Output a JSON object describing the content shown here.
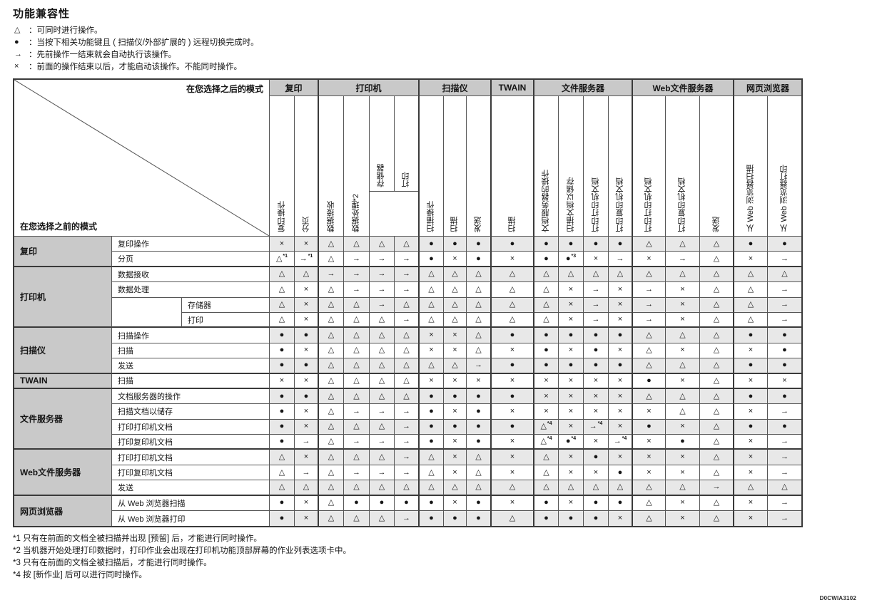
{
  "title": "功能兼容性",
  "legend": [
    {
      "symbol": "△",
      "text": "：可同时进行操作。"
    },
    {
      "symbol": "●",
      "text": "：当按下相关功能键且 ( 扫描仪/外部扩展的 ) 远程切换完成时。"
    },
    {
      "symbol": "→",
      "text": "：先前操作一结束就会自动执行该操作。"
    },
    {
      "symbol": "×",
      "text": "：前面的操作结束以后，才能启动该操作。不能同时操作。"
    }
  ],
  "table": {
    "corner_top_right": "在您选择之后的模式",
    "corner_bottom_left": "在您选择之前的模式",
    "column_groups": [
      {
        "label": "复印",
        "span": 2
      },
      {
        "label": "打印机",
        "span": 4
      },
      {
        "label": "扫描仪",
        "span": 3
      },
      {
        "label": "TWAIN",
        "span": 1
      },
      {
        "label": "文件服务器",
        "span": 4
      },
      {
        "label": "Web文件服务器",
        "span": 3
      },
      {
        "label": "网页浏览器",
        "span": 2
      }
    ],
    "column_labels": [
      "复印操作",
      "分页",
      "数据接收",
      "数据处理*2",
      "存储器",
      "打印",
      "扫描操作",
      "扫描",
      "发送",
      "扫描",
      "文档服务器的操作",
      "扫描文档以储存",
      "打印打印机文档",
      "打印复印机文档",
      "打印打印机文档",
      "打印复印机文档",
      "发送",
      "从 Web 浏览器扫描",
      "从 Web 浏览器打印"
    ],
    "nested_column_indices": [
      4,
      5
    ],
    "row_groups": [
      {
        "label": "复印",
        "span": 2
      },
      {
        "label": "打印机",
        "span": 4
      },
      {
        "label": "扫描仪",
        "span": 3
      },
      {
        "label": "TWAIN",
        "span": 1
      },
      {
        "label": "文件服务器",
        "span": 4
      },
      {
        "label": "Web文件服务器",
        "span": 3
      },
      {
        "label": "网页浏览器",
        "span": 2
      }
    ],
    "row_labels": [
      "复印操作",
      "分页",
      "数据接收",
      "数据处理",
      "存储器",
      "打印",
      "扫描操作",
      "扫描",
      "发送",
      "扫描",
      "文档服务器的操作",
      "扫描文档以储存",
      "打印打印机文档",
      "打印复印机文档",
      "打印打印机文档",
      "打印复印机文档",
      "发送",
      "从 Web 浏览器扫描",
      "从 Web 浏览器打印"
    ],
    "nested_row_indices": [
      4,
      5
    ],
    "cells": [
      [
        "×",
        "×",
        "△",
        "△",
        "△",
        "△",
        "●",
        "●",
        "●",
        "●",
        "●",
        "●",
        "●",
        "●",
        "△",
        "△",
        "△",
        "●",
        "●"
      ],
      [
        "△*1",
        "→*1",
        "△",
        "→",
        "→",
        "→",
        "●",
        "×",
        "●",
        "×",
        "●",
        "●*3",
        "×",
        "→",
        "×",
        "→",
        "△",
        "×",
        "→"
      ],
      [
        "△",
        "△",
        "→",
        "→",
        "→",
        "→",
        "△",
        "△",
        "△",
        "△",
        "△",
        "△",
        "△",
        "△",
        "△",
        "△",
        "△",
        "△",
        "△"
      ],
      [
        "△",
        "×",
        "△",
        "→",
        "→",
        "→",
        "△",
        "△",
        "△",
        "△",
        "△",
        "×",
        "→",
        "×",
        "→",
        "×",
        "△",
        "△",
        "→"
      ],
      [
        "△",
        "×",
        "△",
        "△",
        "→",
        "△",
        "△",
        "△",
        "△",
        "△",
        "△",
        "×",
        "→",
        "×",
        "→",
        "×",
        "△",
        "△",
        "→"
      ],
      [
        "△",
        "×",
        "△",
        "△",
        "△",
        "→",
        "△",
        "△",
        "△",
        "△",
        "△",
        "×",
        "→",
        "×",
        "→",
        "×",
        "△",
        "△",
        "→"
      ],
      [
        "●",
        "●",
        "△",
        "△",
        "△",
        "△",
        "×",
        "×",
        "△",
        "●",
        "●",
        "●",
        "●",
        "●",
        "△",
        "△",
        "△",
        "●",
        "●"
      ],
      [
        "●",
        "×",
        "△",
        "△",
        "△",
        "△",
        "×",
        "×",
        "△",
        "×",
        "●",
        "×",
        "●",
        "×",
        "△",
        "×",
        "△",
        "×",
        "●"
      ],
      [
        "●",
        "●",
        "△",
        "△",
        "△",
        "△",
        "△",
        "△",
        "→",
        "●",
        "●",
        "●",
        "●",
        "●",
        "△",
        "△",
        "△",
        "●",
        "●"
      ],
      [
        "×",
        "×",
        "△",
        "△",
        "△",
        "△",
        "×",
        "×",
        "×",
        "×",
        "×",
        "×",
        "×",
        "×",
        "●",
        "×",
        "△",
        "×",
        "×"
      ],
      [
        "●",
        "●",
        "△",
        "△",
        "△",
        "△",
        "●",
        "●",
        "●",
        "●",
        "×",
        "×",
        "×",
        "×",
        "△",
        "△",
        "△",
        "●",
        "●"
      ],
      [
        "●",
        "×",
        "△",
        "→",
        "→",
        "→",
        "●",
        "×",
        "●",
        "×",
        "×",
        "×",
        "×",
        "×",
        "×",
        "△",
        "△",
        "×",
        "→"
      ],
      [
        "●",
        "×",
        "△",
        "△",
        "△",
        "→",
        "●",
        "●",
        "●",
        "●",
        "△*4",
        "×",
        "→*4",
        "×",
        "●",
        "×",
        "△",
        "●",
        "●"
      ],
      [
        "●",
        "→",
        "△",
        "→",
        "→",
        "→",
        "●",
        "×",
        "●",
        "×",
        "△*4",
        "●*4",
        "×",
        "→*4",
        "×",
        "●",
        "△",
        "×",
        "→"
      ],
      [
        "△",
        "×",
        "△",
        "△",
        "△",
        "→",
        "△",
        "×",
        "△",
        "×",
        "△",
        "×",
        "●",
        "×",
        "×",
        "×",
        "△",
        "×",
        "→"
      ],
      [
        "△",
        "→",
        "△",
        "→",
        "→",
        "→",
        "△",
        "×",
        "△",
        "×",
        "△",
        "×",
        "×",
        "●",
        "×",
        "×",
        "△",
        "×",
        "→"
      ],
      [
        "△",
        "△",
        "△",
        "△",
        "△",
        "△",
        "△",
        "△",
        "△",
        "△",
        "△",
        "△",
        "△",
        "△",
        "△",
        "△",
        "→",
        "△",
        "△"
      ],
      [
        "●",
        "×",
        "△",
        "●",
        "●",
        "●",
        "●",
        "×",
        "●",
        "×",
        "●",
        "×",
        "●",
        "●",
        "△",
        "×",
        "△",
        "×",
        "→"
      ],
      [
        "●",
        "×",
        "△",
        "△",
        "△",
        "→",
        "●",
        "●",
        "●",
        "△",
        "●",
        "●",
        "●",
        "×",
        "△",
        "×",
        "△",
        "×",
        "→"
      ]
    ]
  },
  "footnotes": [
    "*1 只有在前面的文档全被扫描并出现 [预留] 后，才能进行同时操作。",
    "*2 当机器开始处理打印数据时，打印作业会出现在打印机功能顶部屏幕的作业列表选项卡中。",
    "*3 只有在前面的文档全被扫描后，才能进行同时操作。",
    "*4 按 [新作业] 后可以进行同时操作。"
  ],
  "doc_code": "D0CWIA3102"
}
